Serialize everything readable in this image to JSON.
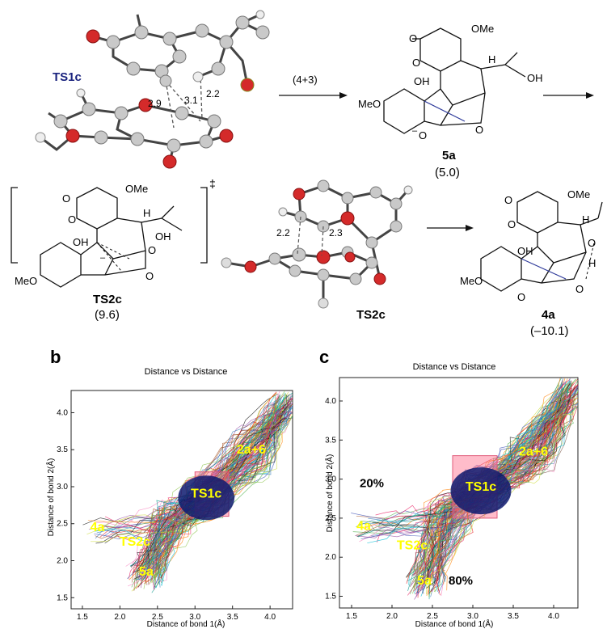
{
  "reaction": {
    "ts1c_label": "TS1c",
    "ts1c_dist_a": "2.9",
    "ts1c_dist_b": "3.1",
    "ts1c_dist_c": "2.2",
    "step_label": "(4+3)",
    "cmpd5a": {
      "label": "5a",
      "energy": "(5.0)"
    },
    "ts2c_struct": {
      "label": "TS2c",
      "energy": "(9.6)"
    },
    "dagger": "‡",
    "ts2c_3d": {
      "label": "TS2c",
      "dist_a": "2.2",
      "dist_b": "2.3"
    },
    "cmpd4a": {
      "label": "4a",
      "energy": "(–10.1)"
    },
    "atoms": {
      "OMe": "OMe",
      "MeO": "MeO",
      "OH": "OH",
      "H": "H",
      "O": "O",
      "minus": "–"
    }
  },
  "panels": [
    {
      "letter": "b",
      "title": "Distance vs Distance",
      "xlabel": "Distance of bond 1(Å)",
      "ylabel": "Distance of bond 2(Å)",
      "xticks": [
        "1.5",
        "2.0",
        "2.5",
        "3.0",
        "3.5",
        "4.0"
      ],
      "yticks": [
        "1.5",
        "2.0",
        "2.5",
        "3.0",
        "3.5",
        "4.0"
      ],
      "region_labels": [
        "2a+6",
        "TS1c",
        "4a",
        "TS2c",
        "5a"
      ]
    },
    {
      "letter": "c",
      "title": "Distance vs Distance",
      "xlabel": "Distance of bond 1(Å)",
      "ylabel": "Distance of bond 2(Å)",
      "xticks": [
        "1.5",
        "2.0",
        "2.5",
        "3.0",
        "3.5",
        "4.0"
      ],
      "yticks": [
        "1.5",
        "2.0",
        "2.5",
        "3.0",
        "3.5",
        "4.0"
      ],
      "region_labels": [
        "2a+6",
        "TS1c",
        "4a",
        "TS2c",
        "5a"
      ],
      "percent_top": "20%",
      "percent_bottom": "80%"
    }
  ],
  "chart_data": [
    {
      "type": "scatter",
      "title": "Distance vs Distance",
      "xlabel": "Distance of bond 1(Å)",
      "ylabel": "Distance of bond 2(Å)",
      "xlim": [
        1.35,
        4.3
      ],
      "ylim": [
        1.35,
        4.3
      ],
      "annotations": [
        {
          "text": "2a+6",
          "x": 3.75,
          "y": 3.45
        },
        {
          "text": "TS1c",
          "x": 3.15,
          "y": 2.85
        },
        {
          "text": "4a",
          "x": 1.7,
          "y": 2.4
        },
        {
          "text": "TS2c",
          "x": 2.2,
          "y": 2.2
        },
        {
          "text": "5a",
          "x": 2.35,
          "y": 1.8
        }
      ],
      "grid": false
    },
    {
      "type": "scatter",
      "title": "Distance vs Distance",
      "xlabel": "Distance of bond 1(Å)",
      "ylabel": "Distance of bond 2(Å)",
      "xlim": [
        1.35,
        4.3
      ],
      "ylim": [
        1.35,
        4.3
      ],
      "annotations": [
        {
          "text": "2a+6",
          "x": 3.75,
          "y": 3.3
        },
        {
          "text": "TS1c",
          "x": 3.1,
          "y": 2.85
        },
        {
          "text": "4a",
          "x": 1.65,
          "y": 2.35
        },
        {
          "text": "TS2c",
          "x": 2.25,
          "y": 2.1
        },
        {
          "text": "5a",
          "x": 2.4,
          "y": 1.65
        },
        {
          "text": "20%",
          "x": 1.75,
          "y": 2.9
        },
        {
          "text": "80%",
          "x": 2.85,
          "y": 1.65
        }
      ],
      "grid": false
    }
  ]
}
